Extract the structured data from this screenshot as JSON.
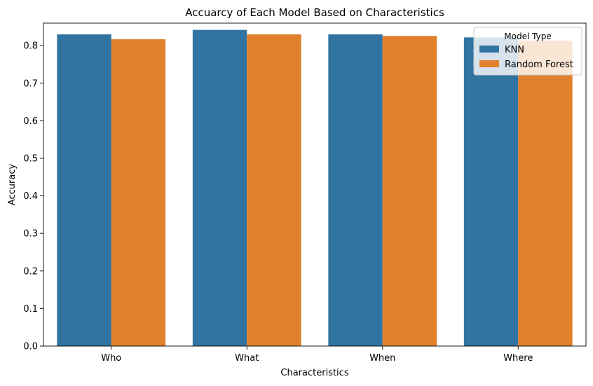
{
  "chart_data": {
    "type": "bar",
    "title": "Accuarcy of Each Model Based on Characteristics",
    "xlabel": "Characteristics",
    "ylabel": "Accuracy",
    "categories": [
      "Who",
      "What",
      "When",
      "Where"
    ],
    "series": [
      {
        "name": "KNN",
        "color": "#3274a1",
        "values": [
          0.83,
          0.842,
          0.83,
          0.822
        ]
      },
      {
        "name": "Random Forest",
        "color": "#e1812c",
        "values": [
          0.817,
          0.83,
          0.826,
          0.813
        ]
      }
    ],
    "ylim": [
      0,
      0.86
    ],
    "yticks": [
      0.0,
      0.1,
      0.2,
      0.3,
      0.4,
      0.5,
      0.6,
      0.7,
      0.8
    ],
    "ytick_labels": [
      "0.0",
      "0.1",
      "0.2",
      "0.3",
      "0.4",
      "0.5",
      "0.6",
      "0.7",
      "0.8"
    ],
    "grid": false,
    "legend": {
      "title": "Model Type",
      "placement": "top-right"
    }
  }
}
